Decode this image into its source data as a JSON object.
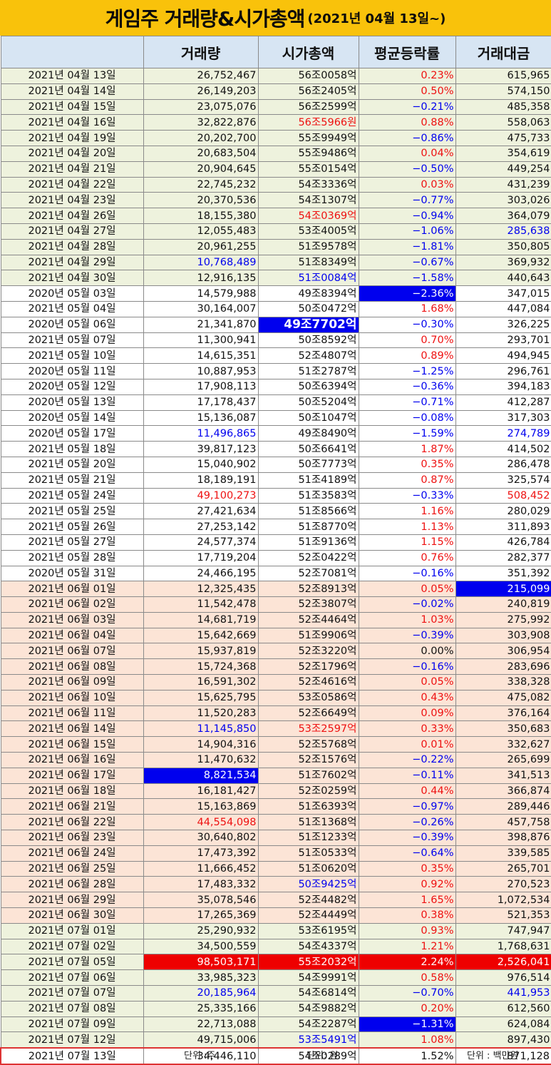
{
  "title": {
    "main": "게임주 거래량&시가총액",
    "sub": "(2021년 04월 13일~)"
  },
  "columns": [
    "",
    "거래량",
    "시가총액",
    "평균등락률",
    "거래대금"
  ],
  "rows": [
    {
      "date": "2021년 04월 13일",
      "volume": "26,752,467",
      "cap": "56조0058억",
      "rate": "0.23%",
      "amount": "615,965",
      "section": "green",
      "rate_style": "red"
    },
    {
      "date": "2021년 04월 14일",
      "volume": "26,149,203",
      "cap": "56조2405억",
      "rate": "0.50%",
      "amount": "574,150",
      "section": "green",
      "rate_style": "red"
    },
    {
      "date": "2021년 04월 15일",
      "volume": "23,075,076",
      "cap": "56조2599억",
      "rate": "−0.21%",
      "amount": "485,358",
      "section": "green",
      "rate_style": "blue"
    },
    {
      "date": "2021년 04월 16일",
      "volume": "32,822,876",
      "cap": "56조5966원",
      "rate": "0.88%",
      "amount": "558,063",
      "section": "green",
      "rate_style": "red",
      "cap_style": "red"
    },
    {
      "date": "2021년 04월 19일",
      "volume": "20,202,700",
      "cap": "55조9949억",
      "rate": "−0.86%",
      "amount": "475,733",
      "section": "green",
      "rate_style": "blue"
    },
    {
      "date": "2021년 04월 20일",
      "volume": "20,683,504",
      "cap": "55조9486억",
      "rate": "0.04%",
      "amount": "354,619",
      "section": "green",
      "rate_style": "red"
    },
    {
      "date": "2021년 04월 21일",
      "volume": "20,904,645",
      "cap": "55조0154억",
      "rate": "−0.50%",
      "amount": "449,254",
      "section": "green",
      "rate_style": "blue"
    },
    {
      "date": "2021년 04월 22일",
      "volume": "22,745,232",
      "cap": "54조3336억",
      "rate": "0.03%",
      "amount": "431,239",
      "section": "green",
      "rate_style": "red"
    },
    {
      "date": "2021년 04월 23일",
      "volume": "20,370,536",
      "cap": "54조1307억",
      "rate": "−0.77%",
      "amount": "303,026",
      "section": "green",
      "rate_style": "blue"
    },
    {
      "date": "2021년 04월 26일",
      "volume": "18,155,380",
      "cap": "54조0369억",
      "rate": "−0.94%",
      "amount": "364,079",
      "section": "green",
      "rate_style": "blue",
      "cap_style": "red"
    },
    {
      "date": "2021년 04월 27일",
      "volume": "12,055,483",
      "cap": "53조4005억",
      "rate": "−1.06%",
      "amount": "285,638",
      "section": "green",
      "rate_style": "blue",
      "amount_style": "blue"
    },
    {
      "date": "2021년 04월 28일",
      "volume": "20,961,255",
      "cap": "51조9578억",
      "rate": "−1.81%",
      "amount": "350,805",
      "section": "green",
      "rate_style": "blue"
    },
    {
      "date": "2021년 04월 29일",
      "volume": "10,768,489",
      "cap": "51조8349억",
      "rate": "−0.67%",
      "amount": "369,932",
      "section": "green",
      "rate_style": "blue",
      "volume_style": "blue"
    },
    {
      "date": "2021년 04월 30일",
      "volume": "12,916,135",
      "cap": "51조0084억",
      "rate": "−1.58%",
      "amount": "440,643",
      "section": "green",
      "rate_style": "blue",
      "cap_style": "blue"
    },
    {
      "date": "2020년 05월 03일",
      "volume": "14,579,988",
      "cap": "49조8394억",
      "rate": "−2.36%",
      "amount": "347,015",
      "section": "white",
      "rate_style": "hl-blue"
    },
    {
      "date": "2021년 05월 04일",
      "volume": "30,164,007",
      "cap": "50조0472억",
      "rate": "1.68%",
      "amount": "447,084",
      "section": "white",
      "rate_style": "red"
    },
    {
      "date": "2020년 05월 06일",
      "volume": "21,341,870",
      "cap": "49조7702억",
      "rate": "−0.30%",
      "amount": "326,225",
      "section": "white",
      "rate_style": "blue",
      "cap_style": "hl-blue-big"
    },
    {
      "date": "2021년 05월 07일",
      "volume": "11,300,941",
      "cap": "50조8592억",
      "rate": "0.70%",
      "amount": "293,701",
      "section": "white",
      "rate_style": "red"
    },
    {
      "date": "2021년 05월 10일",
      "volume": "14,615,351",
      "cap": "52조4807억",
      "rate": "0.89%",
      "amount": "494,945",
      "section": "white",
      "rate_style": "red"
    },
    {
      "date": "2020년 05월 11일",
      "volume": "10,887,953",
      "cap": "51조2787억",
      "rate": "−1.25%",
      "amount": "296,761",
      "section": "white",
      "rate_style": "blue"
    },
    {
      "date": "2020년 05월 12일",
      "volume": "17,908,113",
      "cap": "50조6394억",
      "rate": "−0.36%",
      "amount": "394,183",
      "section": "white",
      "rate_style": "blue"
    },
    {
      "date": "2020년 05월 13일",
      "volume": "17,178,437",
      "cap": "50조5204억",
      "rate": "−0.71%",
      "amount": "412,287",
      "section": "white",
      "rate_style": "blue"
    },
    {
      "date": "2020년 05월 14일",
      "volume": "15,136,087",
      "cap": "50조1047억",
      "rate": "−0.08%",
      "amount": "317,303",
      "section": "white",
      "rate_style": "blue"
    },
    {
      "date": "2020년 05월 17일",
      "volume": "11,496,865",
      "cap": "49조8490억",
      "rate": "−1.59%",
      "amount": "274,789",
      "section": "white",
      "rate_style": "blue",
      "volume_style": "blue",
      "amount_style": "blue"
    },
    {
      "date": "2021년 05월 18일",
      "volume": "39,817,123",
      "cap": "50조6641억",
      "rate": "1.87%",
      "amount": "414,502",
      "section": "white",
      "rate_style": "red"
    },
    {
      "date": "2021년 05월 20일",
      "volume": "15,040,902",
      "cap": "50조7773억",
      "rate": "0.35%",
      "amount": "286,478",
      "section": "white",
      "rate_style": "red"
    },
    {
      "date": "2021년 05월 21일",
      "volume": "18,189,191",
      "cap": "51조4189억",
      "rate": "0.87%",
      "amount": "325,574",
      "section": "white",
      "rate_style": "red"
    },
    {
      "date": "2021년 05월 24일",
      "volume": "49,100,273",
      "cap": "51조3583억",
      "rate": "−0.33%",
      "amount": "508,452",
      "section": "white",
      "rate_style": "blue",
      "volume_style": "red",
      "amount_style": "red"
    },
    {
      "date": "2021년 05월 25일",
      "volume": "27,421,634",
      "cap": "51조8566억",
      "rate": "1.16%",
      "amount": "280,029",
      "section": "white",
      "rate_style": "red"
    },
    {
      "date": "2021년 05월 26일",
      "volume": "27,253,142",
      "cap": "51조8770억",
      "rate": "1.13%",
      "amount": "311,893",
      "section": "white",
      "rate_style": "red"
    },
    {
      "date": "2021년 05월 27일",
      "volume": "24,577,374",
      "cap": "51조9136억",
      "rate": "1.15%",
      "amount": "426,784",
      "section": "white",
      "rate_style": "red"
    },
    {
      "date": "2021년 05월 28일",
      "volume": "17,719,204",
      "cap": "52조0422억",
      "rate": "0.76%",
      "amount": "282,377",
      "section": "white",
      "rate_style": "red"
    },
    {
      "date": "2020년 05월 31일",
      "volume": "24,466,195",
      "cap": "52조7081억",
      "rate": "−0.16%",
      "amount": "351,392",
      "section": "white",
      "rate_style": "blue"
    },
    {
      "date": "2021년 06월 01일",
      "volume": "12,325,435",
      "cap": "52조8913억",
      "rate": "0.05%",
      "amount": "215,099",
      "section": "peach",
      "rate_style": "red",
      "amount_style": "hl-blue"
    },
    {
      "date": "2021년 06월 02일",
      "volume": "11,542,478",
      "cap": "52조3807억",
      "rate": "−0.02%",
      "amount": "240,819",
      "section": "peach",
      "rate_style": "blue"
    },
    {
      "date": "2021년 06월 03일",
      "volume": "14,681,719",
      "cap": "52조4464억",
      "rate": "1.03%",
      "amount": "275,992",
      "section": "peach",
      "rate_style": "red"
    },
    {
      "date": "2021년 06월 04일",
      "volume": "15,642,669",
      "cap": "51조9906억",
      "rate": "−0.39%",
      "amount": "303,908",
      "section": "peach",
      "rate_style": "blue"
    },
    {
      "date": "2021년 06월 07일",
      "volume": "15,937,819",
      "cap": "52조3220억",
      "rate": "0.00%",
      "amount": "306,954",
      "section": "peach"
    },
    {
      "date": "2021년 06월 08일",
      "volume": "15,724,368",
      "cap": "52조1796억",
      "rate": "−0.16%",
      "amount": "283,696",
      "section": "peach",
      "rate_style": "blue"
    },
    {
      "date": "2021년 06월 09일",
      "volume": "16,591,302",
      "cap": "52조4616억",
      "rate": "0.05%",
      "amount": "338,328",
      "section": "peach",
      "rate_style": "red"
    },
    {
      "date": "2021년 06월 10일",
      "volume": "15,625,795",
      "cap": "53조0586억",
      "rate": "0.43%",
      "amount": "475,082",
      "section": "peach",
      "rate_style": "red"
    },
    {
      "date": "2021년 06월 11일",
      "volume": "11,520,283",
      "cap": "52조6649억",
      "rate": "0.09%",
      "amount": "376,164",
      "section": "peach",
      "rate_style": "red"
    },
    {
      "date": "2021년 06월 14일",
      "volume": "11,145,850",
      "cap": "53조2597억",
      "rate": "0.33%",
      "amount": "350,683",
      "section": "peach",
      "rate_style": "red",
      "volume_style": "blue",
      "cap_style": "red"
    },
    {
      "date": "2021년 06월 15일",
      "volume": "14,904,316",
      "cap": "52조5768억",
      "rate": "0.01%",
      "amount": "332,627",
      "section": "peach",
      "rate_style": "red"
    },
    {
      "date": "2021년 06월 16일",
      "volume": "11,470,632",
      "cap": "52조1576억",
      "rate": "−0.22%",
      "amount": "265,699",
      "section": "peach",
      "rate_style": "blue"
    },
    {
      "date": "2021년 06월 17일",
      "volume": "8,821,534",
      "cap": "51조7602억",
      "rate": "−0.11%",
      "amount": "341,513",
      "section": "peach",
      "rate_style": "blue",
      "volume_style": "hl-blue"
    },
    {
      "date": "2021년 06월 18일",
      "volume": "16,181,427",
      "cap": "52조0259억",
      "rate": "0.44%",
      "amount": "366,874",
      "section": "peach",
      "rate_style": "red"
    },
    {
      "date": "2021년 06월 21일",
      "volume": "15,163,869",
      "cap": "51조6393억",
      "rate": "−0.97%",
      "amount": "289,446",
      "section": "peach",
      "rate_style": "blue"
    },
    {
      "date": "2021년 06월 22일",
      "volume": "44,554,098",
      "cap": "51조1368억",
      "rate": "−0.26%",
      "amount": "457,758",
      "section": "peach",
      "rate_style": "blue",
      "volume_style": "red"
    },
    {
      "date": "2021년 06월 23일",
      "volume": "30,640,802",
      "cap": "51조1233억",
      "rate": "−0.39%",
      "amount": "398,876",
      "section": "peach",
      "rate_style": "blue"
    },
    {
      "date": "2021년 06월 24일",
      "volume": "17,473,392",
      "cap": "51조0533억",
      "rate": "−0.64%",
      "amount": "339,585",
      "section": "peach",
      "rate_style": "blue"
    },
    {
      "date": "2021년 06월 25일",
      "volume": "11,666,452",
      "cap": "51조0620억",
      "rate": "0.35%",
      "amount": "265,701",
      "section": "peach",
      "rate_style": "red"
    },
    {
      "date": "2021년 06월 28일",
      "volume": "17,483,332",
      "cap": "50조9425억",
      "rate": "0.92%",
      "amount": "270,523",
      "section": "peach",
      "rate_style": "red",
      "cap_style": "blue"
    },
    {
      "date": "2021년 06월 29일",
      "volume": "35,078,546",
      "cap": "52조4482억",
      "rate": "1.65%",
      "amount": "1,072,534",
      "section": "peach",
      "rate_style": "red"
    },
    {
      "date": "2021년 06월 30일",
      "volume": "17,265,369",
      "cap": "52조4449억",
      "rate": "0.38%",
      "amount": "521,353",
      "section": "peach",
      "rate_style": "red"
    },
    {
      "date": "2021년 07월 01일",
      "volume": "25,290,932",
      "cap": "53조6195억",
      "rate": "0.93%",
      "amount": "747,947",
      "section": "green",
      "rate_style": "red"
    },
    {
      "date": "2021년 07월 02일",
      "volume": "34,500,559",
      "cap": "54조4337억",
      "rate": "1.21%",
      "amount": "1,768,631",
      "section": "green",
      "rate_style": "red"
    },
    {
      "date": "2021년 07월 05일",
      "volume": "98,503,171",
      "cap": "55조2032억",
      "rate": "2.24%",
      "amount": "2,526,041",
      "section": "green",
      "volume_style": "hl-red",
      "cap_style": "hl-red",
      "rate_style": "hl-red",
      "amount_style": "hl-red"
    },
    {
      "date": "2021년 07월 06일",
      "volume": "33,985,323",
      "cap": "54조9991억",
      "rate": "0.58%",
      "amount": "976,514",
      "section": "green",
      "rate_style": "red"
    },
    {
      "date": "2021년 07월 07일",
      "volume": "20,185,964",
      "cap": "54조6814억",
      "rate": "−0.70%",
      "amount": "441,953",
      "section": "green",
      "rate_style": "blue",
      "volume_style": "blue",
      "amount_style": "blue"
    },
    {
      "date": "2021년 07월 08일",
      "volume": "25,335,166",
      "cap": "54조9882억",
      "rate": "0.20%",
      "amount": "612,560",
      "section": "green",
      "rate_style": "red"
    },
    {
      "date": "2021년 07월 09일",
      "volume": "22,713,088",
      "cap": "54조2287억",
      "rate": "−1.31%",
      "amount": "624,084",
      "section": "green",
      "rate_style": "hl-blue"
    },
    {
      "date": "2021년 07월 12일",
      "volume": "49,715,006",
      "cap": "53조5491억",
      "rate": "1.08%",
      "amount": "897,430",
      "section": "green",
      "rate_style": "red",
      "cap_style": "blue"
    },
    {
      "date": "2021년 07월 13일",
      "volume": "34,446,110",
      "cap": "54조0289억",
      "rate": "1.52%",
      "amount": "871,128",
      "section": "last"
    }
  ],
  "footer": {
    "unit_volume": "단위 :주",
    "unit_cap": "단위: 원",
    "unit_amount": "단위 : 백만원"
  },
  "colors": {
    "title_bg": "#f9c20b",
    "header_bg": "#d7e5f3",
    "green_rows": "#eef2dd",
    "peach_rows": "#fce4d6",
    "up": "#ee1111",
    "down": "#0000ee"
  }
}
